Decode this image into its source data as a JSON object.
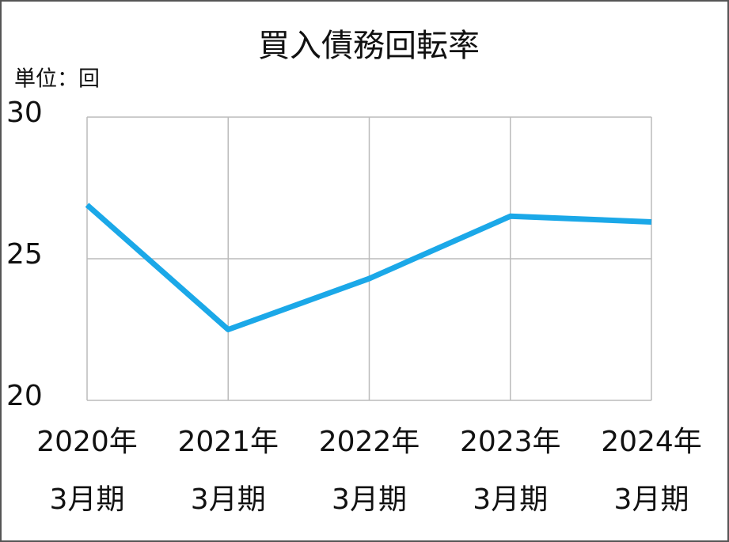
{
  "chart_data": {
    "type": "line",
    "title": "買入債務回転率",
    "unit_label": "単位：回",
    "categories": [
      [
        "2020年",
        "3月期"
      ],
      [
        "2021年",
        "3月期"
      ],
      [
        "2022年",
        "3月期"
      ],
      [
        "2023年",
        "3月期"
      ],
      [
        "2024年",
        "3月期"
      ]
    ],
    "values": [
      26.9,
      22.5,
      24.3,
      26.5,
      26.3
    ],
    "color": "#1ba8e8",
    "ylim": [
      20,
      30
    ],
    "yticks": [
      20,
      25,
      30
    ],
    "grid": true
  }
}
